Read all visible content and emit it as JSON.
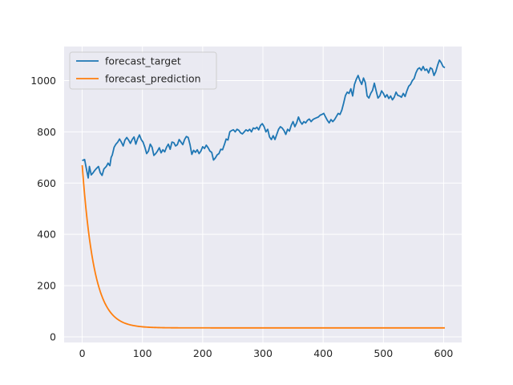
{
  "chart_data": {
    "type": "line",
    "title": "",
    "xlabel": "",
    "ylabel": "",
    "xlim": [
      -30,
      630
    ],
    "ylim": [
      -22,
      1133
    ],
    "x_ticks": [
      0,
      100,
      200,
      300,
      400,
      500,
      600
    ],
    "y_ticks": [
      0,
      200,
      400,
      600,
      800,
      1000
    ],
    "grid": true,
    "legend_position": "top-left",
    "series": [
      {
        "name": "forecast_target",
        "color": "#1f77b4",
        "points": [
          [
            0,
            688
          ],
          [
            4,
            692
          ],
          [
            7,
            655
          ],
          [
            10,
            620
          ],
          [
            12,
            665
          ],
          [
            15,
            632
          ],
          [
            18,
            640
          ],
          [
            21,
            650
          ],
          [
            24,
            658
          ],
          [
            27,
            665
          ],
          [
            30,
            640
          ],
          [
            33,
            630
          ],
          [
            36,
            655
          ],
          [
            40,
            665
          ],
          [
            43,
            678
          ],
          [
            46,
            668
          ],
          [
            48,
            700
          ],
          [
            50,
            710
          ],
          [
            53,
            740
          ],
          [
            56,
            752
          ],
          [
            59,
            760
          ],
          [
            62,
            772
          ],
          [
            65,
            760
          ],
          [
            68,
            745
          ],
          [
            71,
            768
          ],
          [
            74,
            778
          ],
          [
            77,
            768
          ],
          [
            80,
            755
          ],
          [
            83,
            770
          ],
          [
            86,
            780
          ],
          [
            89,
            752
          ],
          [
            92,
            773
          ],
          [
            95,
            788
          ],
          [
            98,
            770
          ],
          [
            101,
            760
          ],
          [
            104,
            740
          ],
          [
            107,
            715
          ],
          [
            110,
            725
          ],
          [
            113,
            752
          ],
          [
            116,
            740
          ],
          [
            119,
            708
          ],
          [
            122,
            715
          ],
          [
            125,
            725
          ],
          [
            128,
            738
          ],
          [
            131,
            718
          ],
          [
            134,
            730
          ],
          [
            137,
            722
          ],
          [
            140,
            740
          ],
          [
            143,
            752
          ],
          [
            146,
            732
          ],
          [
            149,
            760
          ],
          [
            152,
            758
          ],
          [
            155,
            745
          ],
          [
            158,
            750
          ],
          [
            161,
            770
          ],
          [
            164,
            760
          ],
          [
            167,
            750
          ],
          [
            170,
            770
          ],
          [
            173,
            782
          ],
          [
            176,
            778
          ],
          [
            179,
            750
          ],
          [
            182,
            712
          ],
          [
            185,
            728
          ],
          [
            188,
            720
          ],
          [
            191,
            730
          ],
          [
            194,
            715
          ],
          [
            197,
            725
          ],
          [
            200,
            742
          ],
          [
            203,
            735
          ],
          [
            206,
            748
          ],
          [
            209,
            738
          ],
          [
            212,
            725
          ],
          [
            215,
            720
          ],
          [
            218,
            690
          ],
          [
            221,
            698
          ],
          [
            224,
            710
          ],
          [
            227,
            715
          ],
          [
            230,
            732
          ],
          [
            233,
            730
          ],
          [
            236,
            750
          ],
          [
            239,
            772
          ],
          [
            242,
            768
          ],
          [
            245,
            800
          ],
          [
            248,
            805
          ],
          [
            251,
            808
          ],
          [
            254,
            800
          ],
          [
            257,
            810
          ],
          [
            260,
            806
          ],
          [
            263,
            796
          ],
          [
            266,
            792
          ],
          [
            269,
            800
          ],
          [
            272,
            808
          ],
          [
            275,
            803
          ],
          [
            278,
            810
          ],
          [
            281,
            800
          ],
          [
            284,
            815
          ],
          [
            287,
            812
          ],
          [
            290,
            818
          ],
          [
            293,
            808
          ],
          [
            296,
            825
          ],
          [
            299,
            832
          ],
          [
            302,
            820
          ],
          [
            305,
            800
          ],
          [
            308,
            810
          ],
          [
            311,
            780
          ],
          [
            314,
            770
          ],
          [
            317,
            785
          ],
          [
            320,
            770
          ],
          [
            323,
            790
          ],
          [
            326,
            810
          ],
          [
            329,
            820
          ],
          [
            332,
            815
          ],
          [
            335,
            805
          ],
          [
            338,
            790
          ],
          [
            341,
            810
          ],
          [
            344,
            803
          ],
          [
            347,
            825
          ],
          [
            350,
            840
          ],
          [
            353,
            820
          ],
          [
            356,
            835
          ],
          [
            359,
            858
          ],
          [
            362,
            840
          ],
          [
            365,
            830
          ],
          [
            368,
            840
          ],
          [
            371,
            835
          ],
          [
            374,
            845
          ],
          [
            377,
            850
          ],
          [
            380,
            840
          ],
          [
            383,
            848
          ],
          [
            386,
            852
          ],
          [
            389,
            855
          ],
          [
            392,
            858
          ],
          [
            395,
            865
          ],
          [
            398,
            868
          ],
          [
            401,
            872
          ],
          [
            404,
            858
          ],
          [
            407,
            845
          ],
          [
            410,
            835
          ],
          [
            413,
            848
          ],
          [
            416,
            840
          ],
          [
            419,
            848
          ],
          [
            422,
            860
          ],
          [
            425,
            872
          ],
          [
            428,
            868
          ],
          [
            431,
            885
          ],
          [
            434,
            912
          ],
          [
            437,
            942
          ],
          [
            440,
            955
          ],
          [
            443,
            950
          ],
          [
            446,
            968
          ],
          [
            449,
            940
          ],
          [
            452,
            985
          ],
          [
            455,
            1005
          ],
          [
            458,
            1020
          ],
          [
            461,
            1000
          ],
          [
            464,
            985
          ],
          [
            467,
            1010
          ],
          [
            470,
            992
          ],
          [
            473,
            940
          ],
          [
            476,
            932
          ],
          [
            479,
            950
          ],
          [
            482,
            962
          ],
          [
            485,
            990
          ],
          [
            488,
            960
          ],
          [
            491,
            932
          ],
          [
            494,
            940
          ],
          [
            497,
            960
          ],
          [
            500,
            950
          ],
          [
            503,
            935
          ],
          [
            506,
            945
          ],
          [
            509,
            930
          ],
          [
            512,
            940
          ],
          [
            515,
            925
          ],
          [
            518,
            935
          ],
          [
            521,
            955
          ],
          [
            524,
            942
          ],
          [
            527,
            940
          ],
          [
            530,
            935
          ],
          [
            533,
            950
          ],
          [
            536,
            938
          ],
          [
            539,
            960
          ],
          [
            542,
            978
          ],
          [
            545,
            985
          ],
          [
            548,
            1000
          ],
          [
            551,
            1008
          ],
          [
            554,
            1030
          ],
          [
            557,
            1045
          ],
          [
            560,
            1050
          ],
          [
            563,
            1040
          ],
          [
            566,
            1055
          ],
          [
            569,
            1040
          ],
          [
            572,
            1045
          ],
          [
            575,
            1030
          ],
          [
            578,
            1050
          ],
          [
            581,
            1045
          ],
          [
            584,
            1020
          ],
          [
            587,
            1035
          ],
          [
            590,
            1060
          ],
          [
            593,
            1080
          ],
          [
            596,
            1070
          ],
          [
            599,
            1055
          ],
          [
            602,
            1050
          ]
        ]
      },
      {
        "name": "forecast_prediction",
        "color": "#ff7f0e",
        "curve": {
          "type": "exponential_decay",
          "start": 670,
          "asymptote": 35,
          "tau": 20,
          "x_start": 0,
          "x_end": 602
        }
      }
    ]
  }
}
